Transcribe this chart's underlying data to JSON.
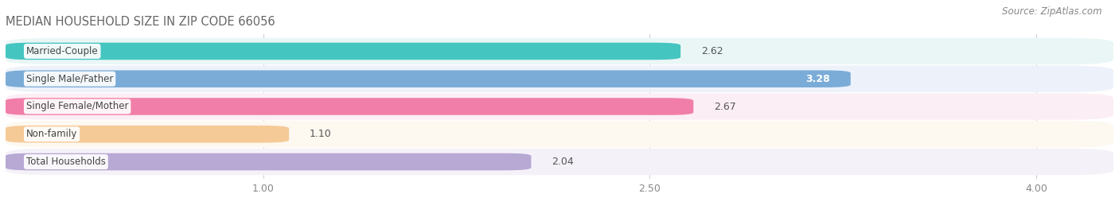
{
  "title": "MEDIAN HOUSEHOLD SIZE IN ZIP CODE 66056",
  "source": "Source: ZipAtlas.com",
  "categories": [
    "Married-Couple",
    "Single Male/Father",
    "Single Female/Mother",
    "Non-family",
    "Total Households"
  ],
  "values": [
    2.62,
    3.28,
    2.67,
    1.1,
    2.04
  ],
  "bar_colors": [
    "#45C5C0",
    "#7BACD8",
    "#F07EA8",
    "#F5CA96",
    "#B8A8D4"
  ],
  "row_bg_colors": [
    "#EAF6F6",
    "#EDF2FA",
    "#FCEEF5",
    "#FDF8F0",
    "#F4F1F8"
  ],
  "xmin": 0.0,
  "xmax": 4.3,
  "xlim_display": [
    0.0,
    4.3
  ],
  "xticks": [
    1.0,
    2.5,
    4.0
  ],
  "title_fontsize": 10.5,
  "source_fontsize": 8.5,
  "bar_label_fontsize": 9,
  "tick_fontsize": 9,
  "category_fontsize": 8.5,
  "value_inside_threshold": 3.0
}
